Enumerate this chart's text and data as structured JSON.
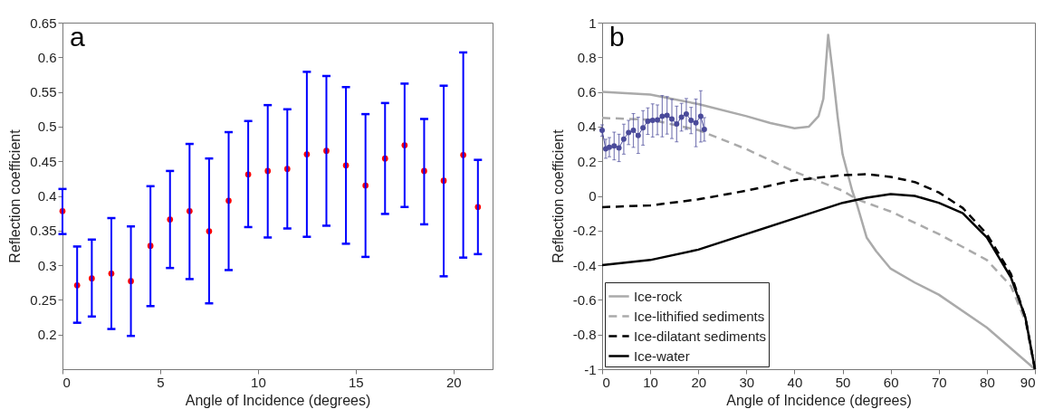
{
  "chart_data": [
    {
      "type": "scatter",
      "xlabel": "Angle of Incidence (degrees)",
      "ylabel": "Reflection coefficient",
      "annotations": [
        "a"
      ],
      "xlim": [
        0,
        22
      ],
      "ylim": [
        0.15,
        0.65
      ],
      "xticks": [
        0,
        5,
        10,
        15,
        20
      ],
      "yticks": [
        0.2,
        0.25,
        0.3,
        0.35,
        0.4,
        0.45,
        0.5,
        0.55,
        0.6,
        0.65
      ],
      "series": [
        {
          "color": "#ff0000",
          "marker": "circle",
          "x": [
            0,
            0.75,
            1.5,
            2.5,
            3.5,
            4.5,
            5.5,
            6.5,
            7.5,
            8.5,
            9.5,
            10.5,
            11.5,
            12.5,
            13.5,
            14.5,
            15.5,
            16.5,
            17.5,
            18.5,
            19.5,
            20.5,
            21.25
          ],
          "values": [
            0.378,
            0.271,
            0.281,
            0.288,
            0.277,
            0.328,
            0.366,
            0.378,
            0.349,
            0.393,
            0.431,
            0.436,
            0.439,
            0.46,
            0.465,
            0.444,
            0.415,
            0.454,
            0.473,
            0.436,
            0.422,
            0.459,
            0.384
          ],
          "errors": [
            [
              0.345,
              0.41
            ],
            [
              0.217,
              0.327
            ],
            [
              0.226,
              0.337
            ],
            [
              0.208,
              0.368
            ],
            [
              0.198,
              0.356
            ],
            [
              0.241,
              0.414
            ],
            [
              0.296,
              0.436
            ],
            [
              0.28,
              0.475
            ],
            [
              0.245,
              0.454
            ],
            [
              0.293,
              0.492
            ],
            [
              0.355,
              0.508
            ],
            [
              0.34,
              0.531
            ],
            [
              0.353,
              0.525
            ],
            [
              0.341,
              0.579
            ],
            [
              0.357,
              0.573
            ],
            [
              0.331,
              0.557
            ],
            [
              0.312,
              0.518
            ],
            [
              0.374,
              0.534
            ],
            [
              0.384,
              0.562
            ],
            [
              0.359,
              0.511
            ],
            [
              0.284,
              0.559
            ],
            [
              0.311,
              0.607
            ],
            [
              0.316,
              0.452
            ]
          ]
        }
      ]
    },
    {
      "type": "line",
      "xlabel": "Angle of Incidence (degrees)",
      "ylabel": "Reflection coefficient",
      "annotations": [
        "b"
      ],
      "xlim": [
        0,
        90
      ],
      "ylim": [
        -1,
        1
      ],
      "xticks": [
        0,
        10,
        20,
        30,
        40,
        50,
        60,
        70,
        80,
        90
      ],
      "yticks": [
        -1,
        -0.8,
        -0.6,
        -0.4,
        -0.2,
        0,
        0.2,
        0.4,
        0.6,
        0.8,
        1
      ],
      "legend": "bottom left",
      "series": [
        {
          "name": "Ice-rock",
          "color": "#aaaaaa",
          "line_style": "solid",
          "x": [
            0,
            10,
            20,
            30,
            35,
            40,
            43,
            45,
            46,
            47,
            48,
            49,
            50,
            52,
            53,
            55,
            57,
            60,
            65,
            70,
            80,
            90
          ],
          "values": [
            0.6,
            0.585,
            0.53,
            0.46,
            0.42,
            0.39,
            0.4,
            0.46,
            0.56,
            0.93,
            0.7,
            0.45,
            0.24,
            0.03,
            -0.05,
            -0.24,
            -0.32,
            -0.42,
            -0.5,
            -0.57,
            -0.76,
            -1
          ]
        },
        {
          "name": "Ice-lithified sediments",
          "color": "#aaaaaa",
          "line_style": "dashed",
          "x": [
            0,
            10,
            20,
            30,
            40,
            50,
            53,
            60,
            70,
            80,
            85,
            88,
            90
          ],
          "values": [
            0.45,
            0.44,
            0.38,
            0.27,
            0.14,
            0.03,
            -0.02,
            -0.09,
            -0.22,
            -0.37,
            -0.52,
            -0.72,
            -1
          ]
        },
        {
          "name": "Ice-dilatant sediments",
          "color": "#000000",
          "line_style": "dashed",
          "x": [
            0,
            10,
            20,
            30,
            40,
            50,
            55,
            60,
            65,
            70,
            75,
            80,
            85,
            88,
            90
          ],
          "values": [
            -0.065,
            -0.055,
            -0.02,
            0.03,
            0.09,
            0.12,
            0.125,
            0.11,
            0.08,
            0.02,
            -0.07,
            -0.22,
            -0.45,
            -0.7,
            -1
          ]
        },
        {
          "name": "Ice-water",
          "color": "#000000",
          "line_style": "solid",
          "x": [
            0,
            10,
            20,
            30,
            40,
            50,
            55,
            60,
            65,
            70,
            75,
            80,
            85,
            88,
            90
          ],
          "values": [
            -0.4,
            -0.37,
            -0.31,
            -0.22,
            -0.13,
            -0.04,
            -0.01,
            0.01,
            0.0,
            -0.04,
            -0.1,
            -0.24,
            -0.47,
            -0.7,
            -1
          ]
        },
        {
          "color": "#4a4a9a",
          "marker": "circle",
          "line_style": "solid",
          "x": [
            0,
            0.75,
            1.5,
            2.5,
            3.5,
            4.5,
            5.5,
            6.5,
            7.5,
            8.5,
            9.5,
            10.5,
            11.5,
            12.5,
            13.5,
            14.5,
            15.5,
            16.5,
            17.5,
            18.5,
            19.5,
            20.5,
            21.25
          ],
          "values": [
            0.378,
            0.271,
            0.281,
            0.288,
            0.277,
            0.328,
            0.366,
            0.378,
            0.349,
            0.393,
            0.431,
            0.436,
            0.439,
            0.46,
            0.465,
            0.444,
            0.415,
            0.454,
            0.473,
            0.436,
            0.422,
            0.459,
            0.384
          ],
          "errors": [
            [
              0.345,
              0.41
            ],
            [
              0.217,
              0.327
            ],
            [
              0.226,
              0.337
            ],
            [
              0.208,
              0.368
            ],
            [
              0.198,
              0.356
            ],
            [
              0.241,
              0.414
            ],
            [
              0.296,
              0.436
            ],
            [
              0.28,
              0.475
            ],
            [
              0.245,
              0.454
            ],
            [
              0.293,
              0.492
            ],
            [
              0.355,
              0.508
            ],
            [
              0.34,
              0.531
            ],
            [
              0.353,
              0.525
            ],
            [
              0.341,
              0.579
            ],
            [
              0.357,
              0.573
            ],
            [
              0.331,
              0.557
            ],
            [
              0.312,
              0.518
            ],
            [
              0.374,
              0.534
            ],
            [
              0.384,
              0.562
            ],
            [
              0.359,
              0.511
            ],
            [
              0.284,
              0.559
            ],
            [
              0.311,
              0.607
            ],
            [
              0.316,
              0.452
            ]
          ]
        }
      ]
    }
  ]
}
